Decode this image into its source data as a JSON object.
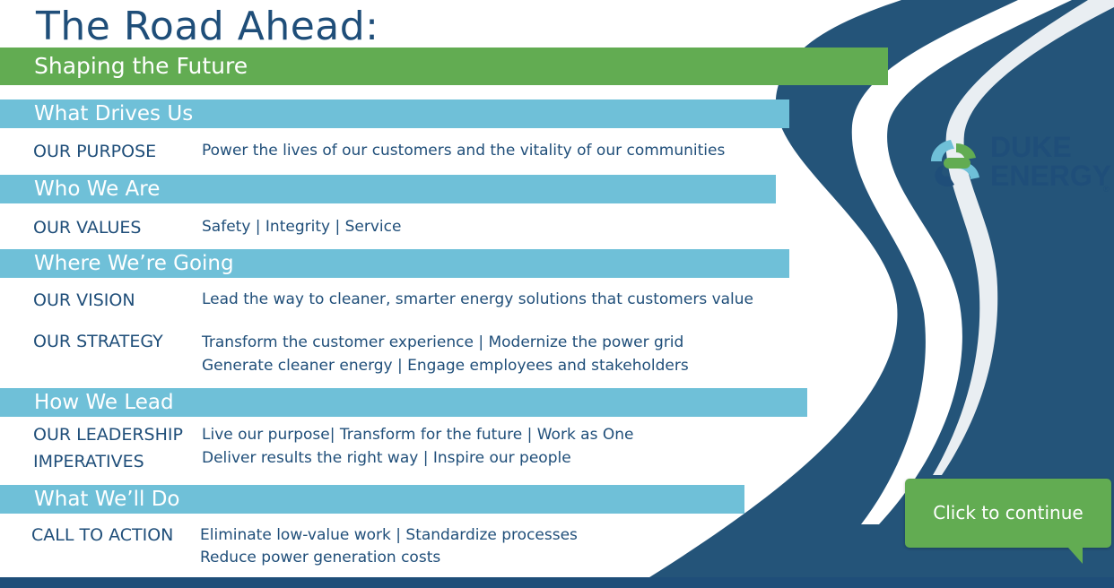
{
  "header": {
    "title": "The Road Ahead:",
    "subtitle": "Shaping the Future"
  },
  "sections": [
    {
      "heading": "What Drives Us",
      "items": [
        {
          "key_lines": [
            "OUR PURPOSE"
          ],
          "value_lines": [
            "Power the  lives of our customers and the vitality of our communities"
          ]
        }
      ]
    },
    {
      "heading": "Who We Are",
      "items": [
        {
          "key_lines": [
            "OUR VALUES"
          ],
          "value_lines": [
            "Safety  | Integrity | Service"
          ]
        }
      ]
    },
    {
      "heading": "Where We’re Going",
      "items": [
        {
          "key_lines": [
            "OUR VISION"
          ],
          "value_lines": [
            "Lead the way to cleaner, smarter energy solutions that customers value"
          ]
        },
        {
          "key_lines": [
            "OUR STRATEGY"
          ],
          "value_lines": [
            "Transform the customer experience | Modernize the power grid",
            "Generate cleaner energy | Engage employees and stakeholders"
          ]
        }
      ]
    },
    {
      "heading": "How We Lead",
      "items": [
        {
          "key_lines": [
            "OUR LEADERSHIP",
            "IMPERATIVES"
          ],
          "value_lines": [
            "Live our purpose| Transform for the future | Work as One",
            "Deliver results the right way | Inspire our people"
          ]
        }
      ]
    },
    {
      "heading": "What We’ll Do",
      "items": [
        {
          "key_lines": [
            "CALL TO ACTION"
          ],
          "value_lines": [
            "Eliminate low-value work | Standardize processes",
            "Reduce power generation costs"
          ]
        }
      ]
    }
  ],
  "logo": {
    "line1": "DUKE",
    "line2": "ENERGY",
    "mark": "®"
  },
  "continue_button": {
    "label": "Click to continue"
  },
  "colors": {
    "navy": "#1f4e79",
    "green": "#62ac52",
    "light_blue": "#6fc0d8",
    "road": "#245479"
  }
}
